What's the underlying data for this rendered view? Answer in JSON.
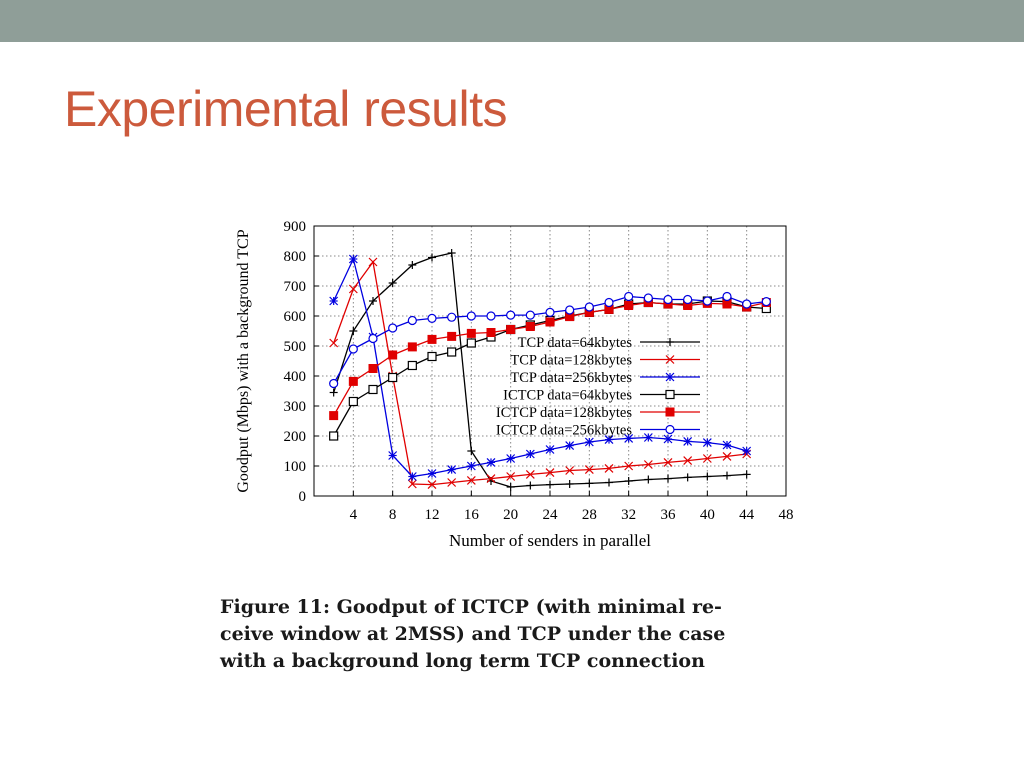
{
  "slide": {
    "title": "Experimental results",
    "caption_lines": [
      "Figure 11:  Goodput of ICTCP (with minimal re-",
      "ceive window at 2MSS) and TCP under the case",
      "with a background long term TCP connection"
    ]
  },
  "colors": {
    "top_bar": "#8f9e98",
    "title": "#cc5a3c"
  },
  "chart_data": {
    "type": "line",
    "xlabel": "Number of senders in parallel",
    "ylabel": "Goodput (Mbps) with a background TCP",
    "xlim": [
      0,
      48
    ],
    "ylim": [
      0,
      900
    ],
    "xticks": [
      4,
      8,
      12,
      16,
      20,
      24,
      28,
      32,
      36,
      40,
      44,
      48
    ],
    "yticks": [
      0,
      100,
      200,
      300,
      400,
      500,
      600,
      700,
      800,
      900
    ],
    "grid": true,
    "legend_position": "center-right",
    "series": [
      {
        "name": "TCP data=64kbytes",
        "color": "#000000",
        "marker": "plus",
        "x": [
          2,
          4,
          6,
          8,
          10,
          12,
          14,
          16,
          18,
          20,
          22,
          24,
          26,
          28,
          30,
          32,
          34,
          36,
          38,
          40,
          42,
          44
        ],
        "y": [
          345,
          550,
          650,
          710,
          770,
          795,
          810,
          150,
          50,
          30,
          35,
          38,
          40,
          42,
          45,
          50,
          55,
          58,
          62,
          65,
          68,
          72
        ]
      },
      {
        "name": "TCP data=128kbytes",
        "color": "#e00000",
        "marker": "cross",
        "x": [
          2,
          4,
          6,
          8,
          10,
          12,
          14,
          16,
          18,
          20,
          22,
          24,
          26,
          28,
          30,
          32,
          34,
          36,
          38,
          40,
          42,
          44
        ],
        "y": [
          510,
          690,
          780,
          400,
          40,
          38,
          45,
          52,
          58,
          65,
          72,
          78,
          85,
          88,
          92,
          100,
          105,
          112,
          118,
          125,
          132,
          140
        ]
      },
      {
        "name": "TCP data=256kbytes",
        "color": "#0000e0",
        "marker": "star",
        "x": [
          2,
          4,
          6,
          8,
          10,
          12,
          14,
          16,
          18,
          20,
          22,
          24,
          26,
          28,
          30,
          32,
          34,
          36,
          38,
          40,
          42,
          44
        ],
        "y": [
          650,
          790,
          530,
          135,
          65,
          75,
          88,
          100,
          112,
          125,
          140,
          155,
          168,
          180,
          188,
          192,
          195,
          190,
          182,
          178,
          170,
          150
        ]
      },
      {
        "name": "ICTCP data=64kbytes",
        "color": "#000000",
        "marker": "square-open",
        "x": [
          2,
          4,
          6,
          8,
          10,
          12,
          14,
          16,
          18,
          20,
          22,
          24,
          26,
          28,
          30,
          32,
          34,
          36,
          38,
          40,
          42,
          44,
          46
        ],
        "y": [
          200,
          315,
          355,
          395,
          435,
          465,
          480,
          510,
          530,
          555,
          570,
          585,
          600,
          612,
          622,
          640,
          645,
          640,
          640,
          650,
          648,
          630,
          625
        ]
      },
      {
        "name": "ICTCP data=128kbytes",
        "color": "#e00000",
        "marker": "square-filled",
        "x": [
          2,
          4,
          6,
          8,
          10,
          12,
          14,
          16,
          18,
          20,
          22,
          24,
          26,
          28,
          30,
          32,
          34,
          36,
          38,
          40,
          42,
          44,
          46
        ],
        "y": [
          268,
          382,
          425,
          470,
          497,
          522,
          532,
          542,
          545,
          555,
          565,
          580,
          598,
          612,
          622,
          635,
          645,
          640,
          635,
          642,
          640,
          630,
          645
        ]
      },
      {
        "name": "ICTCP data=256kbytes",
        "color": "#0000e0",
        "marker": "circle-open",
        "x": [
          2,
          4,
          6,
          8,
          10,
          12,
          14,
          16,
          18,
          20,
          22,
          24,
          26,
          28,
          30,
          32,
          34,
          36,
          38,
          40,
          42,
          44,
          46
        ],
        "y": [
          375,
          490,
          525,
          560,
          585,
          592,
          596,
          600,
          600,
          603,
          603,
          612,
          620,
          630,
          645,
          665,
          660,
          655,
          655,
          650,
          665,
          640,
          648
        ]
      }
    ]
  }
}
